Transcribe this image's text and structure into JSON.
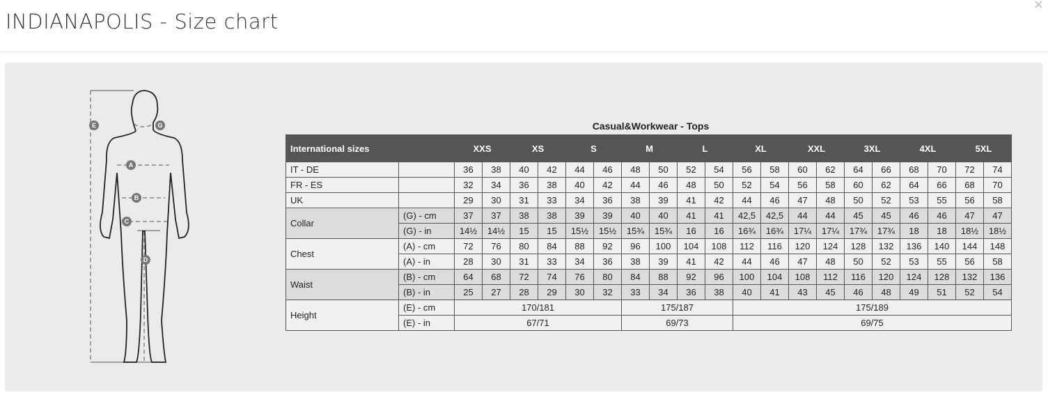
{
  "dialog": {
    "title": "INDIANAPOLIS - Size chart",
    "close_icon": "close-icon"
  },
  "figure": {
    "markers": [
      "A",
      "B",
      "C",
      "D",
      "E",
      "G"
    ]
  },
  "table": {
    "caption": "Casual&Workwear - Tops",
    "header_label": "International sizes",
    "sizes": [
      "XXS",
      "XS",
      "S",
      "M",
      "L",
      "XL",
      "XXL",
      "3XL",
      "4XL",
      "5XL"
    ],
    "rows": [
      {
        "group": "IT - DE",
        "sub": "",
        "shade": "light",
        "values": [
          "36",
          "38",
          "40",
          "42",
          "44",
          "46",
          "48",
          "50",
          "52",
          "54",
          "56",
          "58",
          "60",
          "62",
          "64",
          "66",
          "68",
          "70",
          "72",
          "74"
        ]
      },
      {
        "group": "FR - ES",
        "sub": "",
        "shade": "light",
        "values": [
          "32",
          "34",
          "36",
          "38",
          "40",
          "42",
          "44",
          "46",
          "48",
          "50",
          "52",
          "54",
          "56",
          "58",
          "60",
          "62",
          "64",
          "66",
          "68",
          "70"
        ]
      },
      {
        "group": "UK",
        "sub": "",
        "shade": "light",
        "values": [
          "29",
          "30",
          "31",
          "33",
          "34",
          "36",
          "38",
          "39",
          "41",
          "42",
          "44",
          "46",
          "47",
          "48",
          "50",
          "52",
          "53",
          "55",
          "56",
          "58"
        ]
      },
      {
        "group": "Collar",
        "sub": "(G) - cm",
        "shade": "dark",
        "span": 2,
        "values": [
          "37",
          "37",
          "38",
          "38",
          "39",
          "39",
          "40",
          "40",
          "41",
          "41",
          "42,5",
          "42,5",
          "44",
          "44",
          "45",
          "45",
          "46",
          "46",
          "47",
          "47"
        ]
      },
      {
        "sub": "(G)  - in",
        "shade": "dark",
        "values": [
          "14½",
          "14½",
          "15",
          "15",
          "15½",
          "15½",
          "15¾",
          "15¾",
          "16",
          "16",
          "16¾",
          "16¾",
          "17¼",
          "17¼",
          "17¾",
          "17¾",
          "18",
          "18",
          "18½",
          "18½"
        ]
      },
      {
        "group": "Chest",
        "sub": "(A) - cm",
        "shade": "light",
        "span": 2,
        "values": [
          "72",
          "76",
          "80",
          "84",
          "88",
          "92",
          "96",
          "100",
          "104",
          "108",
          "112",
          "116",
          "120",
          "124",
          "128",
          "132",
          "136",
          "140",
          "144",
          "148"
        ]
      },
      {
        "sub": "(A) - in",
        "shade": "light",
        "values": [
          "28",
          "30",
          "31",
          "33",
          "34",
          "36",
          "38",
          "39",
          "41",
          "42",
          "44",
          "46",
          "47",
          "48",
          "50",
          "52",
          "53",
          "55",
          "56",
          "58"
        ]
      },
      {
        "group": "Waist",
        "sub": "(B) - cm",
        "shade": "dark",
        "span": 2,
        "values": [
          "64",
          "68",
          "72",
          "74",
          "76",
          "80",
          "84",
          "88",
          "92",
          "96",
          "100",
          "104",
          "108",
          "112",
          "116",
          "120",
          "124",
          "128",
          "132",
          "136"
        ]
      },
      {
        "sub": "(B) - in",
        "shade": "dark",
        "values": [
          "25",
          "27",
          "28",
          "29",
          "30",
          "32",
          "33",
          "34",
          "36",
          "38",
          "40",
          "41",
          "43",
          "45",
          "46",
          "48",
          "49",
          "51",
          "52",
          "54"
        ]
      },
      {
        "group": "Height",
        "sub": "(E) - cm",
        "shade": "light",
        "span": 2,
        "merged": [
          {
            "text": "170/181",
            "cols": 6
          },
          {
            "text": "175/187",
            "cols": 4
          },
          {
            "text": "175/189",
            "cols": 10
          }
        ]
      },
      {
        "sub": "(E) - in",
        "shade": "light",
        "merged": [
          {
            "text": "67/71",
            "cols": 6
          },
          {
            "text": "69/73",
            "cols": 4
          },
          {
            "text": "69/75",
            "cols": 10
          }
        ]
      }
    ]
  }
}
